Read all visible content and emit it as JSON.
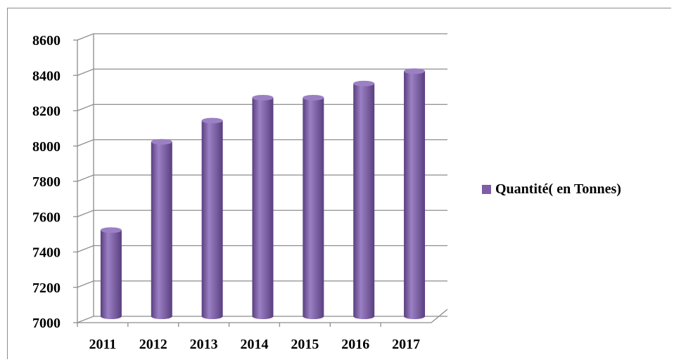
{
  "chart_data": {
    "type": "bar",
    "categories": [
      "2011",
      "2012",
      "2013",
      "2014",
      "2015",
      "2016",
      "2017"
    ],
    "series": [
      {
        "name": "Quantité( en Tonnes)",
        "values": [
          7500,
          8000,
          8120,
          8250,
          8250,
          8330,
          8400
        ]
      }
    ],
    "ylim": [
      7000,
      8600
    ],
    "yticks": [
      "7000",
      "7200",
      "7400",
      "7600",
      "7800",
      "8000",
      "8200",
      "8400",
      "8600"
    ],
    "grid": true,
    "legend_position": "right",
    "style": "3d-cylinder",
    "colors": {
      "bar": "#7d5ea7",
      "bar_light": "#9b80c4",
      "bar_dark": "#5a3f80",
      "grid": "#8c8c8c"
    }
  }
}
